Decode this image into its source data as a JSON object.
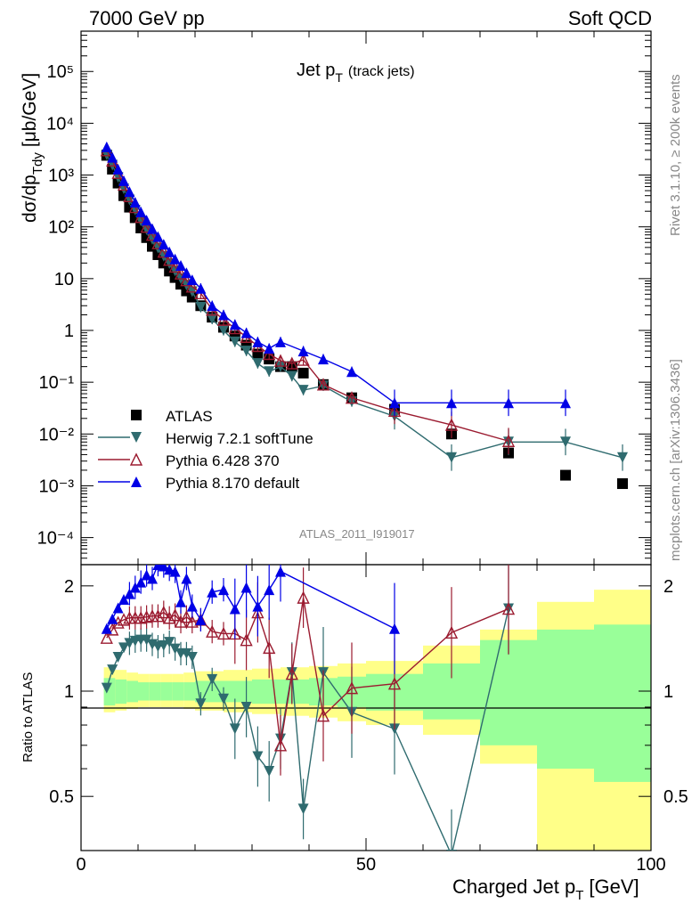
{
  "header": {
    "left": "7000 GeV pp",
    "right": "Soft QCD"
  },
  "plot": {
    "title": "Jet p",
    "title_sub": "T",
    "title_extra": "(track jets)",
    "ylabel_main": "dσ/dp",
    "ylabel_sub": "Tdy",
    "ylabel_unit": "[μb/GeV]",
    "ylabel_ratio": "Ratio to ATLAS",
    "xlabel": "Charged Jet p",
    "xlabel_sub": "T",
    "xlabel_unit": "[GeV]",
    "watermark": "ATLAS_2011_I919017",
    "side_rivet": "Rivet 3.1.10, ≥ 200k events",
    "side_mcplots": "mcplots.cern.ch [arXiv:1306.3436]"
  },
  "chart_data": [
    {
      "type": "scatter",
      "title": "Jet pT (track jets)",
      "xlabel": "Charged Jet pT [GeV]",
      "ylabel": "dσ/dpTdy [μb/GeV]",
      "xlim": [
        0,
        100
      ],
      "ylim": [
        3e-05,
        600000.0
      ],
      "yscale": "log",
      "legend": "bottom-left",
      "series": [
        {
          "name": "ATLAS",
          "color": "#000000",
          "marker": "square",
          "x": [
            4.5,
            5.5,
            6.5,
            7.5,
            8.5,
            9.5,
            10.5,
            11.5,
            12.5,
            13.5,
            14.5,
            15.5,
            16.5,
            17.5,
            18.5,
            19.5,
            21,
            23,
            25,
            27,
            29,
            31,
            33,
            35,
            37,
            39,
            42.5,
            47.5,
            55,
            65,
            75,
            85,
            95
          ],
          "y": [
            2400,
            1300,
            700,
            400,
            240,
            150,
            95,
            62,
            42,
            29,
            20,
            14,
            10.5,
            7.8,
            5.8,
            4.4,
            3.0,
            1.8,
            1.15,
            0.78,
            0.52,
            0.35,
            0.28,
            0.2,
            0.2,
            0.15,
            0.09,
            0.05,
            0.03,
            0.01,
            0.0043,
            0.0016,
            0.0011
          ]
        },
        {
          "name": "Herwig 7.2.1 softTune",
          "color": "#2f6b6f",
          "marker": "triangle-down",
          "x": [
            4.5,
            5.5,
            6.5,
            7.5,
            8.5,
            9.5,
            10.5,
            11.5,
            12.5,
            13.5,
            14.5,
            15.5,
            16.5,
            17.5,
            18.5,
            19.5,
            21,
            23,
            25,
            27,
            29,
            31,
            33,
            35,
            37,
            39,
            42.5,
            47.5,
            55,
            65,
            75,
            85,
            95
          ],
          "y": [
            2450,
            1550,
            900,
            540,
            330,
            210,
            130,
            88,
            57,
            39,
            27,
            19.5,
            14,
            10,
            7.5,
            5.6,
            2.8,
            1.65,
            1.0,
            0.6,
            0.4,
            0.23,
            0.16,
            0.2,
            0.13,
            0.07,
            0.085,
            0.042,
            0.022,
            0.0035,
            0.007,
            0.007,
            0.0035
          ]
        },
        {
          "name": "Pythia 6.428 370",
          "color": "#9b1b30",
          "marker": "triangle-open",
          "x": [
            4.5,
            5.5,
            6.5,
            7.5,
            8.5,
            9.5,
            10.5,
            11.5,
            12.5,
            13.5,
            14.5,
            15.5,
            16.5,
            17.5,
            18.5,
            19.5,
            21,
            23,
            25,
            27,
            29,
            31,
            33,
            35,
            37,
            39,
            42.5,
            47.5,
            55,
            65,
            75
          ],
          "y": [
            3000,
            1900,
            1100,
            650,
            390,
            240,
            155,
            100,
            70,
            48,
            33,
            23,
            17,
            12.5,
            9.3,
            7,
            5.2,
            2.5,
            1.6,
            1.1,
            0.75,
            0.5,
            0.35,
            0.26,
            0.23,
            0.27,
            0.09,
            0.05,
            0.028,
            0.015,
            0.0073
          ]
        },
        {
          "name": "Pythia 8.170 default",
          "color": "#0000e6",
          "marker": "triangle-up",
          "x": [
            4.5,
            5.5,
            6.5,
            7.5,
            8.5,
            9.5,
            10.5,
            11.5,
            12.5,
            13.5,
            14.5,
            15.5,
            16.5,
            17.5,
            18.5,
            19.5,
            21,
            23,
            25,
            27,
            29,
            31,
            33,
            35,
            39,
            42.5,
            47.5,
            55,
            65,
            75,
            85
          ],
          "y": [
            3500,
            2200,
            1300,
            780,
            480,
            300,
            195,
            135,
            92,
            65,
            46,
            33,
            24,
            18,
            13,
            9.5,
            6.5,
            3.0,
            2.0,
            1.3,
            0.9,
            0.6,
            0.45,
            0.6,
            0.4,
            0.28,
            0.16,
            0.04,
            0.04,
            0.04,
            0.04
          ]
        }
      ]
    },
    {
      "type": "line",
      "title": "Ratio to ATLAS",
      "xlim": [
        0,
        100
      ],
      "ylim": [
        0.35,
        2.3
      ],
      "yscale": "log",
      "yticks": [
        0.5,
        1,
        2
      ],
      "xticks": [
        0,
        50,
        100
      ],
      "reference_line": 1,
      "bands": {
        "x": [
          4,
          6,
          8,
          10,
          12,
          14,
          16,
          18,
          20,
          25,
          30,
          35,
          40,
          45,
          50,
          60,
          70,
          80,
          90,
          100
        ],
        "stat_hi": [
          1.09,
          1.08,
          1.07,
          1.06,
          1.06,
          1.06,
          1.06,
          1.06,
          1.07,
          1.07,
          1.08,
          1.08,
          1.09,
          1.1,
          1.12,
          1.2,
          1.4,
          1.5,
          1.55
        ],
        "stat_lo": [
          0.91,
          0.92,
          0.93,
          0.94,
          0.94,
          0.94,
          0.94,
          0.94,
          0.93,
          0.93,
          0.92,
          0.92,
          0.91,
          0.9,
          0.88,
          0.83,
          0.7,
          0.6,
          0.55
        ],
        "total_hi": [
          1.17,
          1.15,
          1.13,
          1.12,
          1.12,
          1.12,
          1.12,
          1.13,
          1.14,
          1.15,
          1.16,
          1.17,
          1.18,
          1.2,
          1.22,
          1.35,
          1.5,
          1.8,
          1.95
        ],
        "total_lo": [
          0.87,
          0.88,
          0.89,
          0.9,
          0.9,
          0.9,
          0.9,
          0.89,
          0.88,
          0.87,
          0.86,
          0.85,
          0.84,
          0.82,
          0.8,
          0.75,
          0.62,
          0.35,
          0.35
        ]
      },
      "series": [
        {
          "name": "Herwig 7.2.1 softTune",
          "color": "#2f6b6f",
          "x": [
            4.5,
            5.5,
            6.5,
            7.5,
            8.5,
            9.5,
            10.5,
            11.5,
            12.5,
            13.5,
            14.5,
            15.5,
            16.5,
            17.5,
            18.5,
            19.5,
            21,
            23,
            25,
            27,
            29,
            31,
            33,
            35,
            37,
            39,
            42.5,
            47.5,
            55,
            65,
            75
          ],
          "y": [
            1.02,
            1.15,
            1.25,
            1.33,
            1.37,
            1.39,
            1.4,
            1.4,
            1.36,
            1.34,
            1.35,
            1.38,
            1.32,
            1.28,
            1.28,
            1.25,
            0.92,
            1.08,
            0.95,
            0.78,
            0.9,
            0.65,
            0.59,
            0.73,
            1.13,
            0.46,
            1.13,
            0.87,
            0.78,
            0.34,
            1.72
          ]
        },
        {
          "name": "Pythia 6.428 370",
          "color": "#9b1b30",
          "x": [
            4.5,
            5.5,
            6.5,
            7.5,
            8.5,
            9.5,
            10.5,
            11.5,
            12.5,
            13.5,
            14.5,
            15.5,
            16.5,
            17.5,
            18.5,
            19.5,
            21,
            23,
            25,
            27,
            29,
            31,
            33,
            35,
            37,
            39,
            42.5,
            47.5,
            55,
            65,
            75
          ],
          "y": [
            1.42,
            1.5,
            1.57,
            1.6,
            1.62,
            1.62,
            1.62,
            1.63,
            1.64,
            1.64,
            1.68,
            1.62,
            1.65,
            1.58,
            1.63,
            1.58,
            1.6,
            1.48,
            1.46,
            1.46,
            1.4,
            1.68,
            1.33,
            0.7,
            1.12,
            1.85,
            0.85,
            1.02,
            1.05,
            1.47,
            1.72
          ]
        },
        {
          "name": "Pythia 8.170 default",
          "color": "#0000e6",
          "x": [
            4.5,
            5.5,
            6.5,
            7.5,
            8.5,
            9.5,
            10.5,
            11.5,
            12.5,
            13.5,
            14.5,
            15.5,
            16.5,
            17.5,
            18.5,
            19.5,
            21,
            23,
            25,
            27,
            29,
            31,
            33,
            35,
            55
          ],
          "y": [
            1.51,
            1.61,
            1.73,
            1.83,
            1.9,
            1.98,
            2.05,
            2.15,
            2.1,
            2.3,
            2.28,
            2.23,
            2.2,
            1.8,
            2.1,
            1.75,
            1.6,
            1.92,
            1.95,
            1.72,
            1.98,
            1.75,
            1.95,
            2.2,
            1.51
          ]
        }
      ]
    }
  ]
}
